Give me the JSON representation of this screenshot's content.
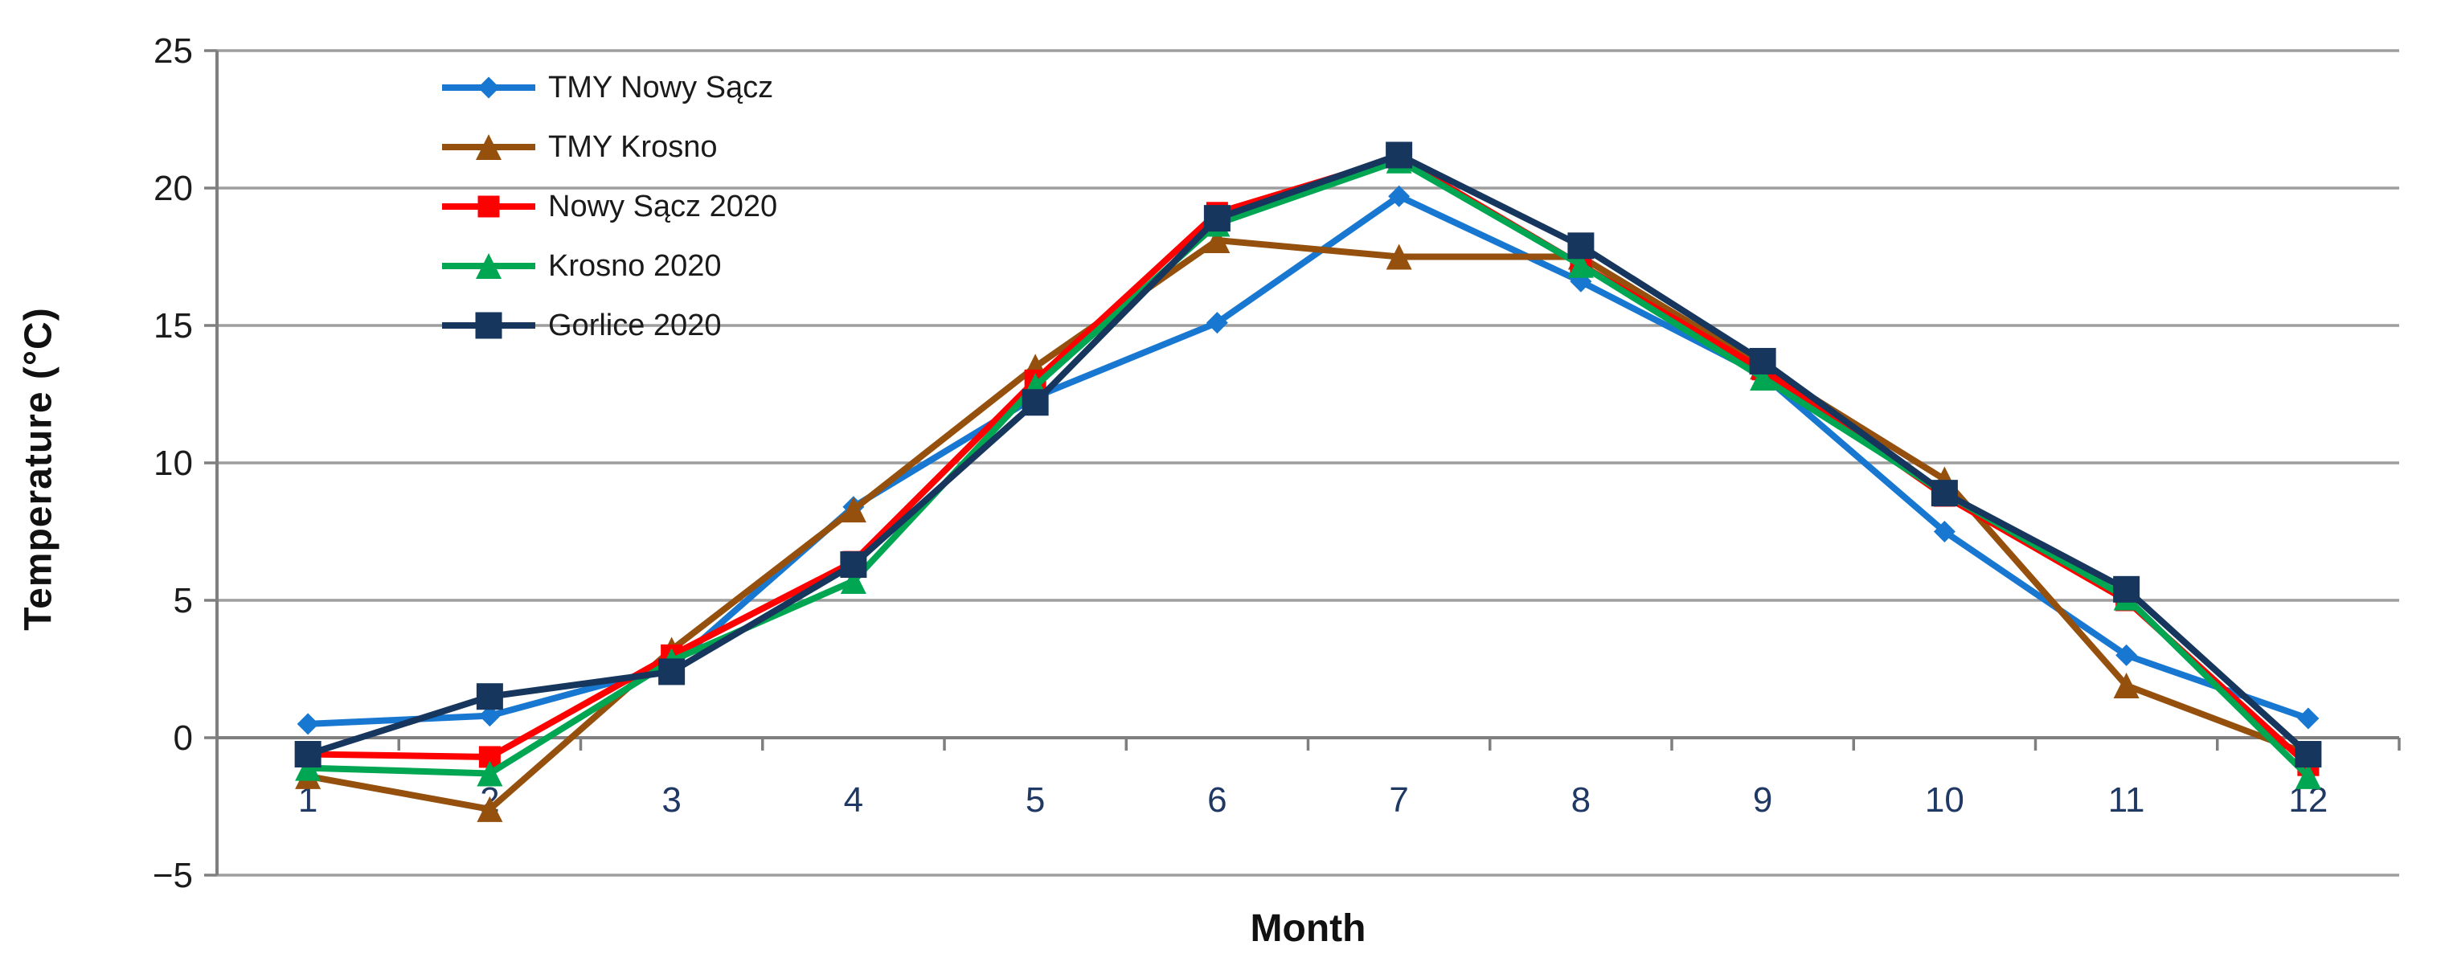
{
  "chart_data": {
    "type": "line",
    "title": "",
    "xlabel": "Month",
    "ylabel": "Temperature (°C)",
    "x": [
      1,
      2,
      3,
      4,
      5,
      6,
      7,
      8,
      9,
      10,
      11,
      12
    ],
    "x_tick_labels": [
      "1",
      "2",
      "3",
      "4",
      "5",
      "6",
      "7",
      "8",
      "9",
      "10",
      "11",
      "12"
    ],
    "ylim": [
      -5,
      25
    ],
    "yticks": [
      25,
      20,
      15,
      10,
      5,
      0,
      -5
    ],
    "ytick_labels": [
      "25",
      "20",
      "15",
      "10",
      "5",
      "0",
      "−5"
    ],
    "grid": "horizontal",
    "legend_position": "inside-top-left",
    "series": [
      {
        "name": "TMY Nowy Sącz",
        "color": "#1878D1",
        "marker": "diamond",
        "marker_size": 27,
        "values": [
          0.5,
          0.8,
          2.6,
          8.4,
          12.4,
          15.1,
          19.7,
          16.6,
          13.2,
          7.5,
          3.0,
          0.7
        ]
      },
      {
        "name": "TMY Krosno",
        "color": "#95500E",
        "marker": "triangle",
        "marker_size": 32,
        "values": [
          -1.4,
          -2.6,
          3.2,
          8.3,
          13.5,
          18.1,
          17.5,
          17.5,
          13.5,
          9.4,
          1.9,
          -0.6
        ]
      },
      {
        "name": "Nowy Sącz 2020",
        "color": "#FF0000",
        "marker": "square",
        "marker_size": 27,
        "values": [
          -0.6,
          -0.7,
          3.0,
          6.4,
          13.0,
          19.1,
          21.1,
          17.2,
          13.4,
          8.8,
          5.0,
          -1.0
        ]
      },
      {
        "name": "Krosno 2020",
        "color": "#00A651",
        "marker": "triangle",
        "marker_size": 32,
        "values": [
          -1.1,
          -1.3,
          2.8,
          5.7,
          12.8,
          18.7,
          21.0,
          17.2,
          13.1,
          8.9,
          5.1,
          -1.4
        ]
      },
      {
        "name": "Gorlice 2020",
        "color": "#16365D",
        "marker": "square",
        "marker_size": 33,
        "values": [
          -0.6,
          1.5,
          2.4,
          6.3,
          12.2,
          18.9,
          21.2,
          17.9,
          13.7,
          8.9,
          5.4,
          -0.6
        ]
      }
    ],
    "colors": {
      "gridline": "#9E9E9E",
      "axis": "#7F7F7F",
      "y_tick_label": "#1c1c1c",
      "x_tick_label": "#1F3864"
    }
  }
}
